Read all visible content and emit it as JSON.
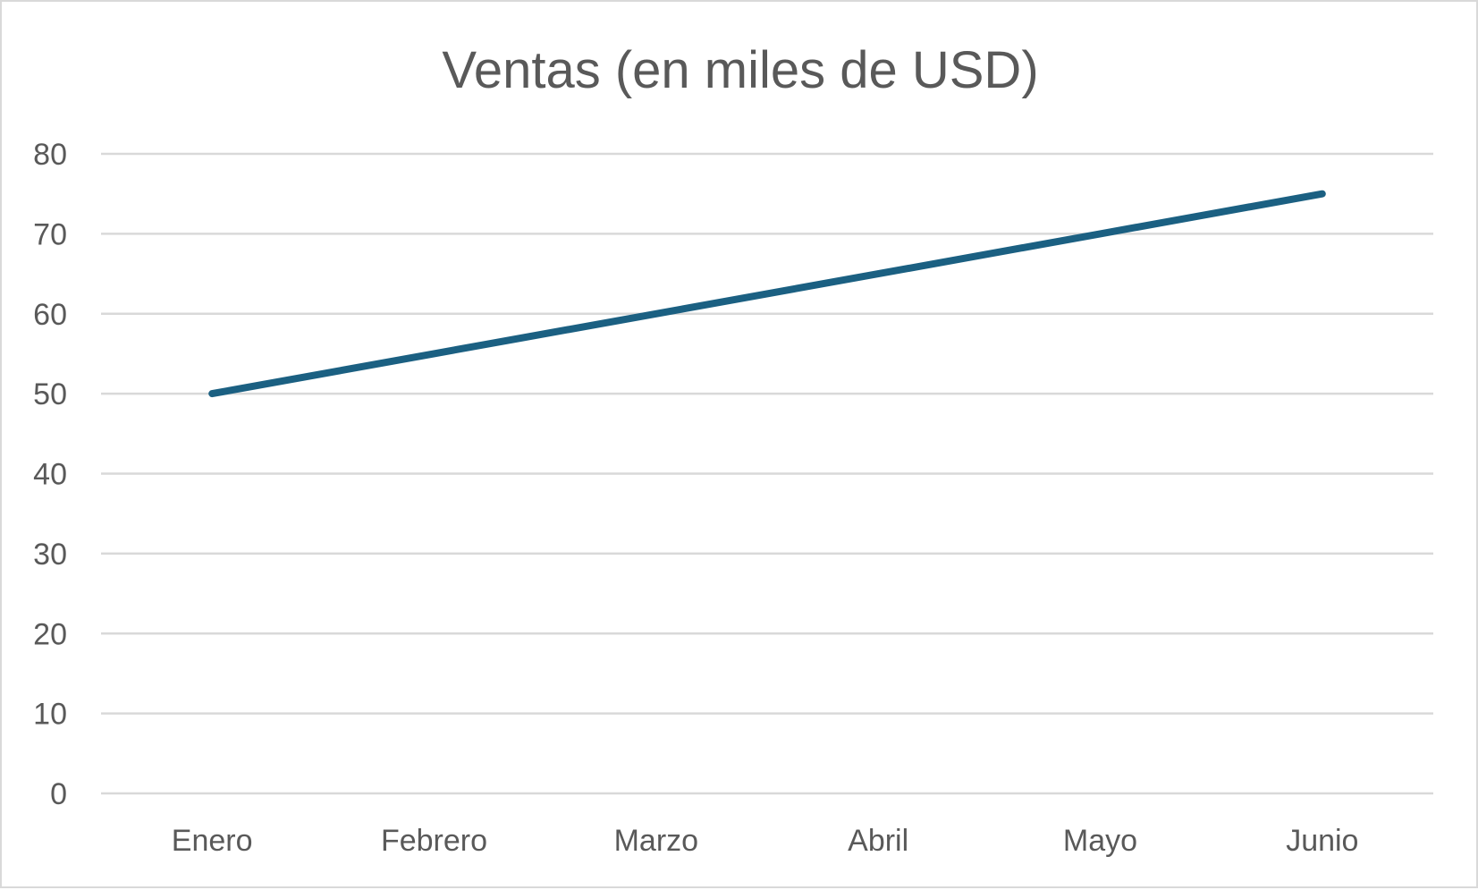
{
  "chart_data": {
    "type": "line",
    "title": "Ventas (en miles de USD)",
    "xlabel": "",
    "ylabel": "",
    "categories": [
      "Enero",
      "Febrero",
      "Marzo",
      "Abril",
      "Mayo",
      "Junio"
    ],
    "series": [
      {
        "values": [
          50,
          55,
          60,
          65,
          70,
          75
        ],
        "color": "#1b6082"
      }
    ],
    "ylim": [
      0,
      80
    ],
    "yticks": [
      0,
      10,
      20,
      30,
      40,
      50,
      60,
      70,
      80
    ],
    "grid": true,
    "legend": "none"
  }
}
